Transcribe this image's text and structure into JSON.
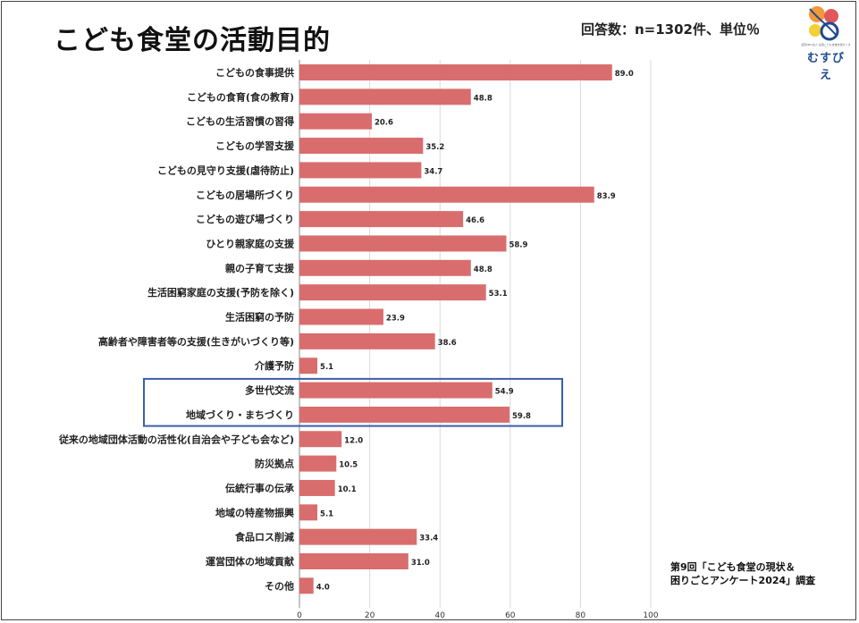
{
  "title": "こども食堂の活動目的",
  "subtitle": "回答数：n=1302件、単位％",
  "logo": {
    "text": "むすびえ",
    "small_text": "認定NPO法人 全国こども食堂支援センター"
  },
  "source": {
    "line1": "第9回「こども食堂の現状＆",
    "line2": "困りごとアンケート2024」調査"
  },
  "colors": {
    "bar": "#d96d6d",
    "highlight_box": "#3a5fa8",
    "grid": "#d9d9d9"
  },
  "chart_data": {
    "type": "bar",
    "orientation": "horizontal",
    "categories": [
      "こどもの食事提供",
      "こどもの食育(食の教育)",
      "こどもの生活習慣の習得",
      "こどもの学習支援",
      "こどもの見守り支援(虐待防止)",
      "こどもの居場所づくり",
      "こどもの遊び場づくり",
      "ひとり親家庭の支援",
      "親の子育て支援",
      "生活困窮家庭の支援(予防を除く)",
      "生活困窮の予防",
      "高齢者や障害者等の支援(生きがいづくり等)",
      "介護予防",
      "多世代交流",
      "地域づくり・まちづくり",
      "従来の地域団体活動の活性化(自治会や子ども会など)",
      "防災拠点",
      "伝統行事の伝承",
      "地域の特産物振興",
      "食品ロス削減",
      "運営団体の地域貢献",
      "その他"
    ],
    "values": [
      89.0,
      48.8,
      20.6,
      35.2,
      34.7,
      83.9,
      46.6,
      58.9,
      48.8,
      53.1,
      23.9,
      38.6,
      5.1,
      54.9,
      59.8,
      12.0,
      10.5,
      10.1,
      5.1,
      33.4,
      31.0,
      4.0
    ],
    "value_labels": [
      "89.0",
      "48.8",
      "20.6",
      "35.2",
      "34.7",
      "83.9",
      "46.6",
      "58.9",
      "48.8",
      "53.1",
      "23.9",
      "38.6",
      "5.1",
      "54.9",
      "59.8",
      "12.0",
      "10.5",
      "10.1",
      "5.1",
      "33.4",
      "31.0",
      "4.0"
    ],
    "xlim": [
      0,
      100
    ],
    "xticks": [
      0,
      20,
      40,
      60,
      80,
      100
    ],
    "xtick_labels": [
      "0",
      "20",
      "40",
      "60",
      "80",
      "100"
    ],
    "grid": true,
    "highlighted_categories": [
      "多世代交流",
      "地域づくり・まちづくり"
    ]
  }
}
